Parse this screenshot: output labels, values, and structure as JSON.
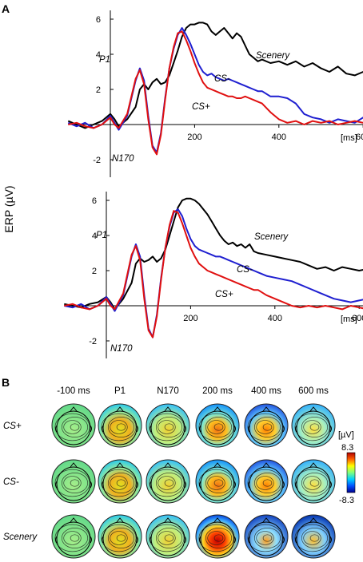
{
  "panel_a_label": "A",
  "panel_b_label": "B",
  "y_axis_label": "ERP (µV)",
  "x_unit": "[ms]",
  "chart_data": [
    {
      "type": "line",
      "panel": "A-top",
      "xlim": [
        -100,
        700
      ],
      "ylim": [
        -3,
        6.5
      ],
      "x_ticks": [
        200,
        400,
        600
      ],
      "y_ticks": [
        -2,
        2,
        4,
        6
      ],
      "annotations": [
        "P1",
        "N170"
      ],
      "colors": {
        "Scenery": "#000000",
        "CS-": "#1f1fd0",
        "CS+": "#e01010"
      },
      "series": [
        {
          "name": "Scenery",
          "x": [
            -100,
            -80,
            -60,
            -40,
            -20,
            0,
            10,
            20,
            40,
            60,
            70,
            80,
            90,
            100,
            110,
            120,
            130,
            140,
            150,
            160,
            170,
            180,
            190,
            200,
            210,
            220,
            230,
            240,
            250,
            260,
            270,
            280,
            290,
            300,
            310,
            320,
            330,
            340,
            350,
            360,
            380,
            400,
            420,
            440,
            460,
            480,
            500,
            520,
            540,
            560,
            580,
            600,
            620,
            640,
            660,
            680,
            700
          ],
          "y": [
            0.2,
            0.0,
            -0.2,
            0.0,
            0.2,
            0.6,
            0.3,
            -0.1,
            0.3,
            1.0,
            2.0,
            2.3,
            2.0,
            2.4,
            2.6,
            2.3,
            2.4,
            2.8,
            3.5,
            4.2,
            5.0,
            5.5,
            5.7,
            5.7,
            5.8,
            5.8,
            5.7,
            5.3,
            5.1,
            5.3,
            5.5,
            5.2,
            4.9,
            5.2,
            5.0,
            4.5,
            4.0,
            3.8,
            3.6,
            3.7,
            3.5,
            3.6,
            3.4,
            3.6,
            3.3,
            3.5,
            3.2,
            3.0,
            3.3,
            2.9,
            2.8,
            3.0,
            2.8,
            2.7,
            2.9,
            2.6,
            2.8
          ]
        },
        {
          "name": "CS-",
          "x": [
            -100,
            -80,
            -60,
            -40,
            -20,
            0,
            10,
            20,
            40,
            60,
            70,
            80,
            90,
            100,
            110,
            120,
            130,
            140,
            150,
            160,
            170,
            180,
            190,
            200,
            210,
            220,
            230,
            240,
            250,
            260,
            270,
            280,
            290,
            300,
            310,
            320,
            330,
            340,
            350,
            360,
            380,
            400,
            420,
            440,
            460,
            480,
            500,
            520,
            540,
            560,
            580,
            600,
            620,
            640,
            660,
            680,
            700
          ],
          "y": [
            0.1,
            -0.1,
            0.1,
            -0.2,
            0.0,
            0.5,
            0.1,
            -0.3,
            0.5,
            2.5,
            3.2,
            2.5,
            0.5,
            -1.2,
            -1.6,
            -0.5,
            1.5,
            3.2,
            4.3,
            5.1,
            5.5,
            5.1,
            4.6,
            4.0,
            3.4,
            3.0,
            2.8,
            2.9,
            2.7,
            2.6,
            2.5,
            2.6,
            2.5,
            2.4,
            2.3,
            2.2,
            2.1,
            2.0,
            1.9,
            1.9,
            1.6,
            1.6,
            1.5,
            1.2,
            0.6,
            0.4,
            0.3,
            0.1,
            0.3,
            0.2,
            0.1,
            0.4,
            0.3,
            0.3,
            0.5,
            0.6,
            0.8
          ]
        },
        {
          "name": "CS+",
          "x": [
            -100,
            -80,
            -60,
            -40,
            -20,
            0,
            10,
            20,
            40,
            60,
            70,
            80,
            90,
            100,
            110,
            120,
            130,
            140,
            150,
            160,
            170,
            180,
            190,
            200,
            210,
            220,
            230,
            240,
            250,
            260,
            270,
            280,
            290,
            300,
            310,
            320,
            330,
            340,
            350,
            360,
            380,
            400,
            420,
            440,
            460,
            480,
            500,
            520,
            540,
            560,
            580,
            600,
            620,
            640,
            660,
            680,
            700
          ],
          "y": [
            0.0,
            0.1,
            -0.1,
            -0.2,
            0.0,
            0.4,
            0.0,
            -0.2,
            0.6,
            2.6,
            3.1,
            2.3,
            0.3,
            -1.3,
            -1.7,
            -0.6,
            1.4,
            3.2,
            4.4,
            5.2,
            5.3,
            4.8,
            4.2,
            3.5,
            2.9,
            2.4,
            2.1,
            2.0,
            1.9,
            1.8,
            1.7,
            1.6,
            1.6,
            1.5,
            1.5,
            1.6,
            1.5,
            1.4,
            1.3,
            1.2,
            0.7,
            0.3,
            0.1,
            0.2,
            0.0,
            0.2,
            0.1,
            0.2,
            0.0,
            0.1,
            0.2,
            0.1,
            0.3,
            0.4,
            0.5,
            0.6,
            0.6
          ]
        }
      ]
    },
    {
      "type": "line",
      "panel": "A-bottom",
      "xlim": [
        -100,
        700
      ],
      "ylim": [
        -3,
        6.5
      ],
      "x_ticks": [
        200,
        400,
        600
      ],
      "y_ticks": [
        -2,
        2,
        4,
        6
      ],
      "annotations": [
        "P1",
        "N170"
      ],
      "colors": {
        "Scenery": "#000000",
        "CS-": "#1f1fd0",
        "CS+": "#e01010"
      },
      "series": [
        {
          "name": "Scenery",
          "x": [
            -100,
            -80,
            -60,
            -40,
            -20,
            0,
            10,
            20,
            40,
            60,
            70,
            80,
            90,
            100,
            110,
            120,
            130,
            140,
            150,
            160,
            170,
            180,
            190,
            200,
            210,
            220,
            230,
            240,
            250,
            260,
            270,
            280,
            290,
            300,
            310,
            320,
            330,
            340,
            350,
            360,
            380,
            400,
            420,
            440,
            460,
            480,
            500,
            520,
            540,
            560,
            580,
            600,
            620,
            640,
            660,
            680,
            700
          ],
          "y": [
            0.1,
            0.0,
            -0.1,
            0.1,
            0.2,
            0.5,
            0.2,
            -0.2,
            0.4,
            1.3,
            2.4,
            2.7,
            2.5,
            2.6,
            2.8,
            2.5,
            2.7,
            3.2,
            4.0,
            4.8,
            5.6,
            6.0,
            6.1,
            6.1,
            6.0,
            5.8,
            5.5,
            5.2,
            4.8,
            4.4,
            4.0,
            3.7,
            3.5,
            3.6,
            3.4,
            3.5,
            3.3,
            3.5,
            3.1,
            3.0,
            2.9,
            2.8,
            2.7,
            2.6,
            2.5,
            2.3,
            2.1,
            2.2,
            2.0,
            2.2,
            2.1,
            2.0,
            2.1,
            2.2,
            2.4,
            2.3,
            2.4
          ]
        },
        {
          "name": "CS-",
          "x": [
            -100,
            -80,
            -60,
            -40,
            -20,
            0,
            10,
            20,
            40,
            60,
            70,
            80,
            90,
            100,
            110,
            120,
            130,
            140,
            150,
            160,
            170,
            180,
            190,
            200,
            210,
            220,
            230,
            240,
            250,
            260,
            270,
            280,
            290,
            300,
            310,
            320,
            330,
            340,
            350,
            360,
            380,
            400,
            420,
            440,
            460,
            480,
            500,
            520,
            540,
            560,
            580,
            600,
            620,
            640,
            660,
            680,
            700
          ],
          "y": [
            0.0,
            -0.1,
            0.1,
            -0.2,
            0.0,
            0.5,
            0.1,
            -0.3,
            0.6,
            2.8,
            3.5,
            2.8,
            0.6,
            -1.3,
            -1.8,
            -0.5,
            1.6,
            3.3,
            4.5,
            5.3,
            5.5,
            5.1,
            4.4,
            3.8,
            3.4,
            3.2,
            3.1,
            3.0,
            2.9,
            2.8,
            2.8,
            2.7,
            2.6,
            2.5,
            2.4,
            2.3,
            2.2,
            2.1,
            2.0,
            1.9,
            1.7,
            1.6,
            1.5,
            1.4,
            1.2,
            1.0,
            0.8,
            0.6,
            0.4,
            0.3,
            0.2,
            0.3,
            0.4,
            0.5,
            0.7,
            0.9,
            1.0
          ]
        },
        {
          "name": "CS+",
          "x": [
            -100,
            -80,
            -60,
            -40,
            -20,
            0,
            10,
            20,
            40,
            60,
            70,
            80,
            90,
            100,
            110,
            120,
            130,
            140,
            150,
            160,
            170,
            180,
            190,
            200,
            210,
            220,
            230,
            240,
            250,
            260,
            270,
            280,
            290,
            300,
            310,
            320,
            330,
            340,
            350,
            360,
            380,
            400,
            420,
            440,
            460,
            480,
            500,
            520,
            540,
            560,
            580,
            600,
            620,
            640,
            660,
            680,
            700
          ],
          "y": [
            0.0,
            0.1,
            -0.1,
            -0.2,
            0.0,
            0.4,
            0.0,
            -0.2,
            0.7,
            2.9,
            3.4,
            2.6,
            0.4,
            -1.4,
            -1.8,
            -0.6,
            1.5,
            3.3,
            4.6,
            5.4,
            5.3,
            4.7,
            4.0,
            3.3,
            2.8,
            2.4,
            2.2,
            2.0,
            1.9,
            1.8,
            1.7,
            1.6,
            1.5,
            1.4,
            1.3,
            1.2,
            1.1,
            1.0,
            0.9,
            0.9,
            0.6,
            0.4,
            0.2,
            0.0,
            -0.1,
            0.0,
            -0.1,
            0.0,
            -0.1,
            -0.2,
            0.0,
            -0.1,
            -0.2,
            -0.1,
            0.0,
            -0.1,
            0.0
          ]
        }
      ]
    },
    {
      "type": "heatmap",
      "panel": "B",
      "columns": [
        "-100 ms",
        "P1",
        "N170",
        "200 ms",
        "400 ms",
        "600 ms"
      ],
      "rows": [
        "CS+",
        "CS-",
        "Scenery"
      ],
      "colorbar_unit": "[µV]",
      "colorbar_max": "8.3",
      "colorbar_min": "-8.3",
      "colormap": [
        "#00008f",
        "#0050ff",
        "#00d0ff",
        "#7fff7f",
        "#ffff00",
        "#ff6000",
        "#b00000"
      ]
    }
  ]
}
